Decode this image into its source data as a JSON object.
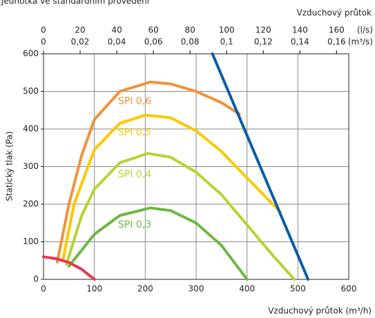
{
  "chart_data": {
    "type": "line",
    "header": "Jednotka ve standardním provedení",
    "top_title": "Vzduchový průtok",
    "x_label": "Vzduchový průtok (m³/h)",
    "y_label": "Statický tlak (Pa)",
    "xlim": [
      0,
      600
    ],
    "xticks": [
      0,
      100,
      200,
      300,
      400,
      500,
      600
    ],
    "ylim": [
      0,
      600
    ],
    "yticks": [
      0,
      100,
      200,
      300,
      400,
      500,
      600
    ],
    "grid": true,
    "top_axes": [
      {
        "unit": "(l/s)",
        "xlim": [
          0,
          166.667
        ],
        "xticks": [
          0,
          20,
          40,
          60,
          80,
          100,
          120,
          140,
          160
        ]
      },
      {
        "unit": "(m³/s)",
        "xlim": [
          0,
          0.166667
        ],
        "xticks": [
          0,
          {
            "value": 0.02,
            "label": "0,02"
          },
          {
            "value": 0.04,
            "label": "0,04"
          },
          {
            "value": 0.06,
            "label": "0,06"
          },
          {
            "value": 0.08,
            "label": "0,08"
          },
          {
            "value": 0.1,
            "label": "0,1"
          },
          {
            "value": 0.12,
            "label": "0,12"
          },
          {
            "value": 0.14,
            "label": "0,14"
          },
          {
            "value": 0.16,
            "label": "0,16"
          }
        ]
      }
    ],
    "series": [
      {
        "name": "SPI 0,6",
        "color": "#f0923a",
        "x": [
          27,
          50,
          75,
          100,
          150,
          210,
          250,
          300,
          350,
          385
        ],
        "values": [
          46,
          200,
          330,
          425,
          500,
          525,
          520,
          500,
          470,
          440
        ]
      },
      {
        "name": "SPI 0,5",
        "color": "#fcc800",
        "x": [
          38,
          60,
          100,
          150,
          200,
          250,
          300,
          350,
          400,
          465
        ],
        "values": [
          50,
          200,
          345,
          415,
          437,
          430,
          395,
          340,
          270,
          180
        ]
      },
      {
        "name": "SPI 0,4",
        "color": "#b5d334",
        "x": [
          45,
          75,
          100,
          150,
          205,
          250,
          300,
          350,
          400,
          450,
          493
        ],
        "values": [
          40,
          170,
          240,
          310,
          335,
          325,
          285,
          225,
          145,
          65,
          0
        ]
      },
      {
        "name": "SPI 0,3",
        "color": "#6db843",
        "x": [
          50,
          100,
          150,
          210,
          250,
          300,
          350,
          400
        ],
        "values": [
          35,
          120,
          170,
          190,
          183,
          150,
          90,
          0
        ]
      },
      {
        "color": "#e8384e",
        "x": [
          0,
          25,
          50,
          75,
          100
        ],
        "values": [
          60,
          55,
          45,
          27,
          0
        ]
      },
      {
        "color": "#0a5ca8",
        "x": [
          332,
          520
        ],
        "values": [
          600,
          0
        ]
      }
    ]
  }
}
